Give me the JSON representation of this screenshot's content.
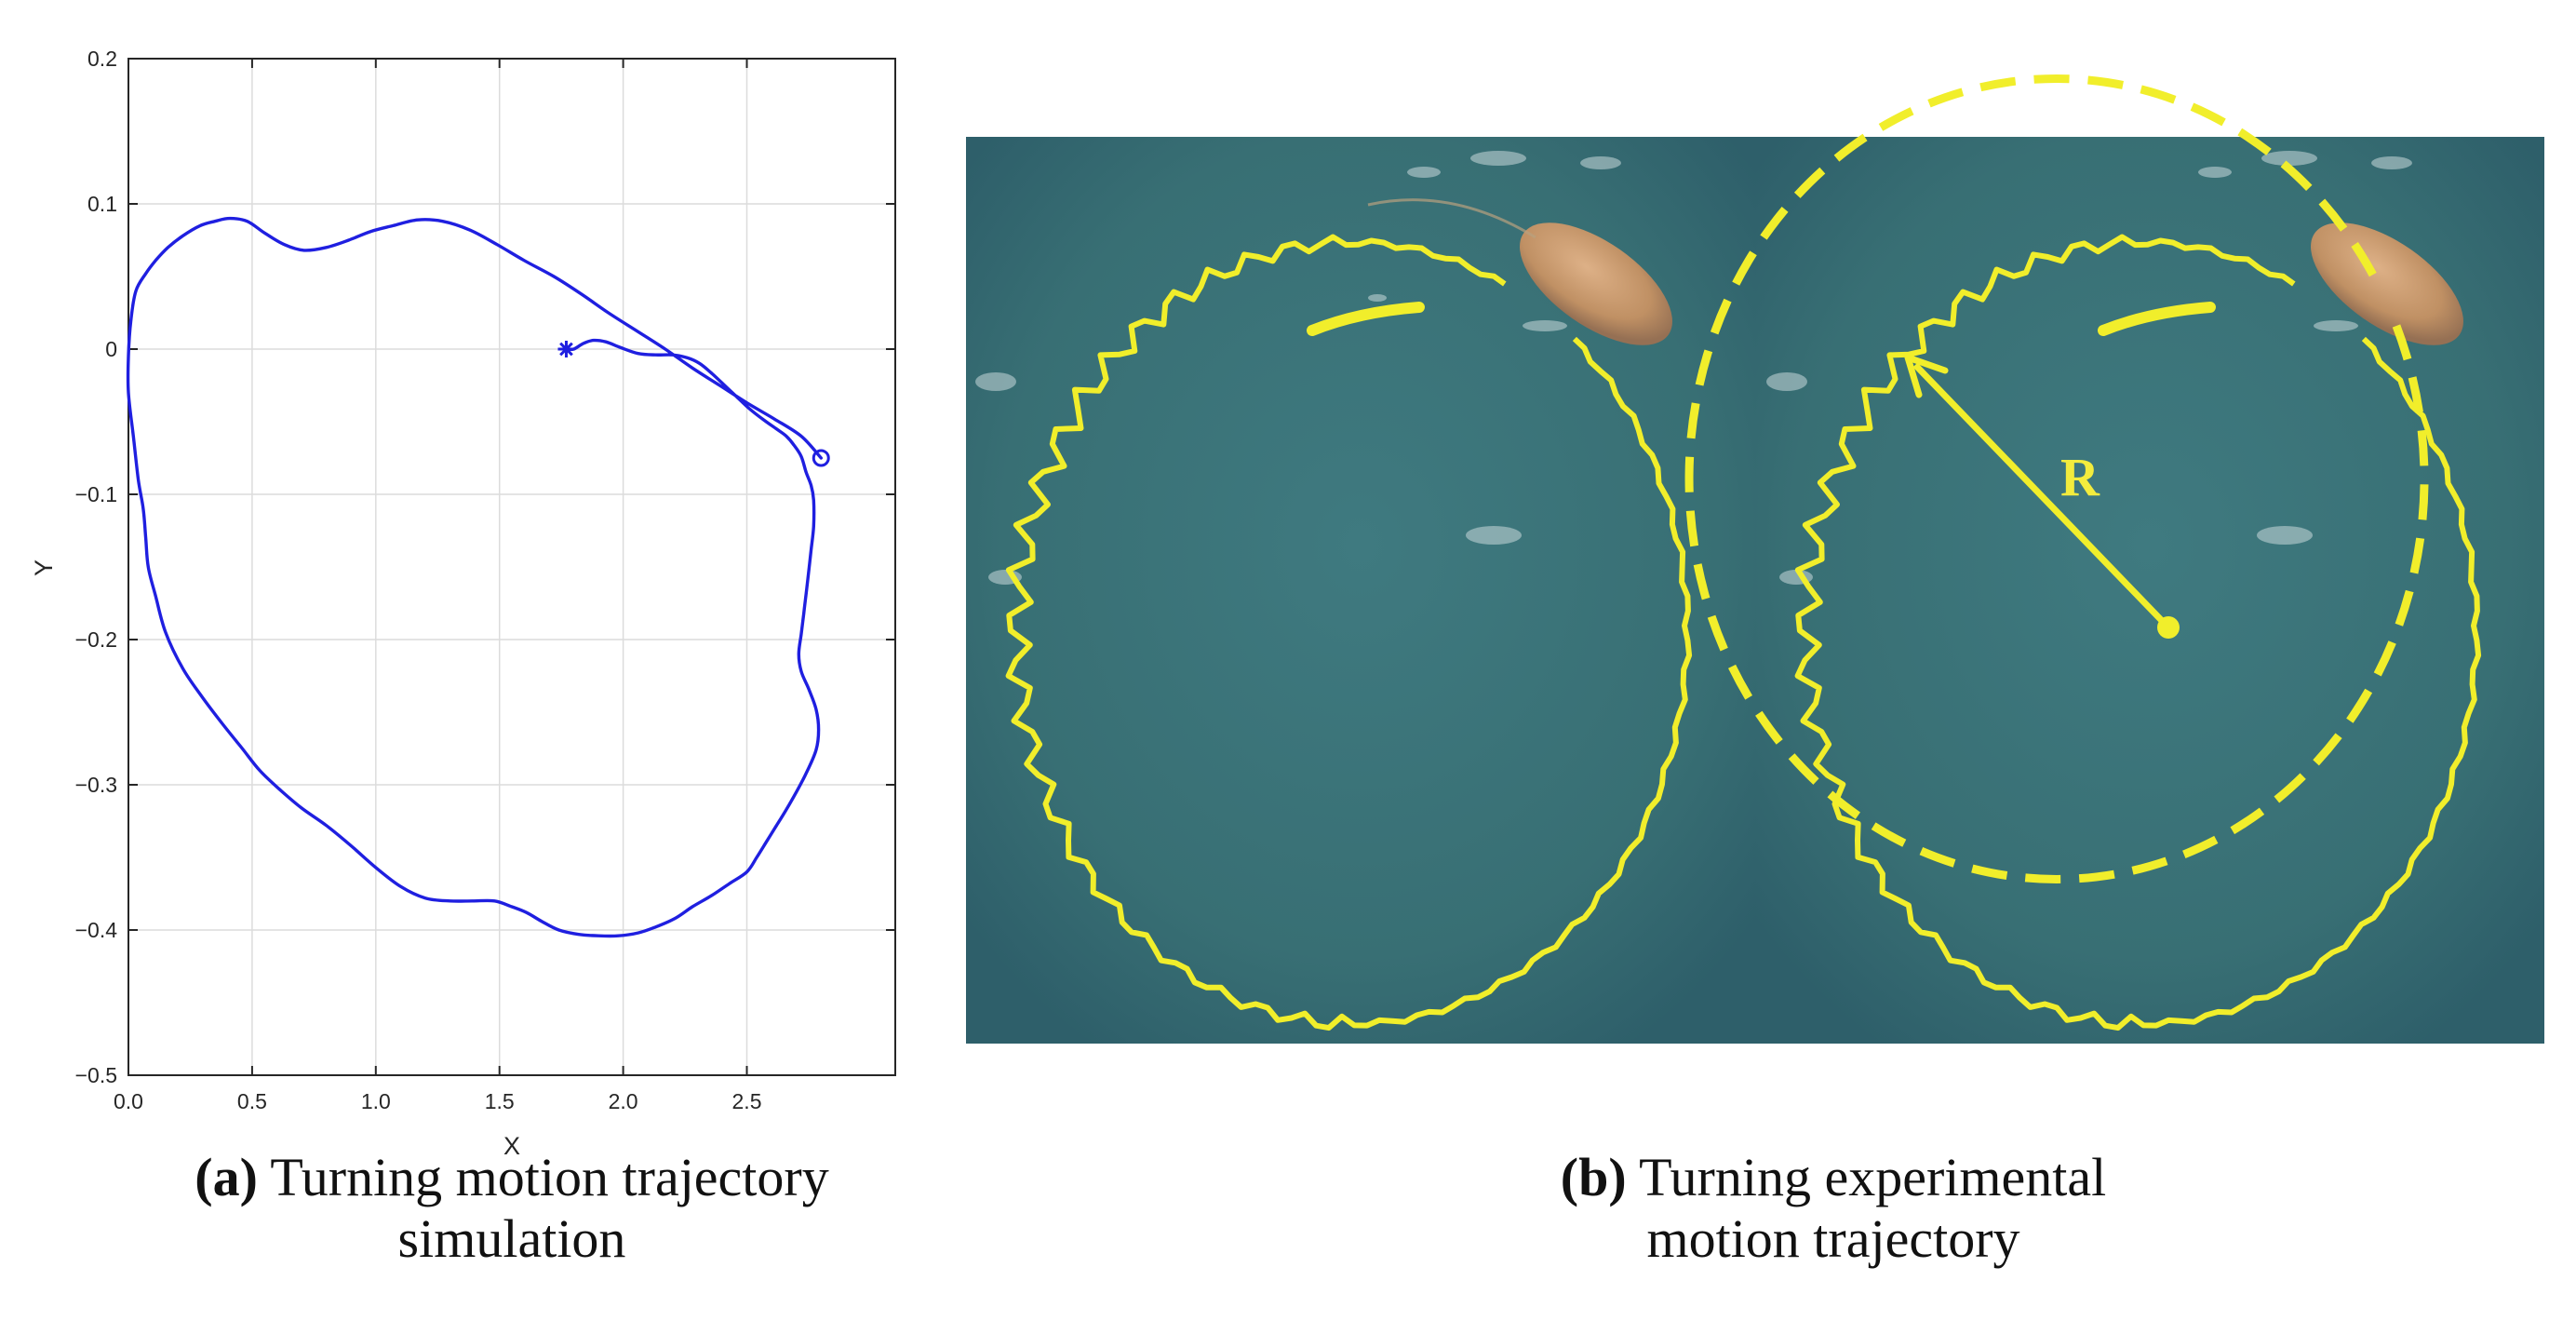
{
  "chart_data": [
    {
      "type": "line",
      "panel_label": "(a)",
      "caption_line1": "Turning motion trajectory",
      "caption_line2": "simulation",
      "xlabel": "X",
      "ylabel": "Y",
      "xlim": [
        0,
        3.1
      ],
      "ylim": [
        -0.5,
        0.2
      ],
      "xticks": [
        "0.0",
        "0.5",
        "1.0",
        "1.5",
        "2.0",
        "2.5"
      ],
      "yticks": [
        "0.2",
        "0.1",
        "0",
        "−0.1",
        "−0.2",
        "−0.3",
        "−0.4",
        "−0.5"
      ],
      "grid": true,
      "line_color": "#1f1fe0",
      "series": [
        {
          "x": [
            1.77,
            1.8,
            1.84,
            1.88,
            1.93,
            1.99,
            2.06,
            2.13,
            2.2,
            2.26,
            2.31,
            2.36,
            2.41,
            2.46,
            2.51,
            2.57,
            2.62,
            2.66,
            2.69,
            2.72,
            2.74,
            2.76,
            2.77,
            2.77,
            2.76,
            2.75,
            2.74,
            2.73,
            2.72,
            2.71,
            2.72,
            2.75,
            2.78,
            2.79,
            2.78,
            2.74,
            2.7,
            2.66,
            2.62,
            2.58,
            2.54,
            2.5,
            2.43,
            2.36,
            2.28,
            2.21,
            2.13,
            2.06,
            1.98,
            1.9,
            1.82,
            1.74,
            1.67,
            1.61,
            1.55,
            1.48,
            1.39,
            1.3,
            1.2,
            1.1,
            1.0,
            0.9,
            0.8,
            0.7,
            0.61,
            0.53,
            0.46,
            0.38,
            0.3,
            0.22,
            0.15,
            0.11,
            0.08,
            0.07,
            0.06,
            0.04,
            0.02,
            0.0,
            0.0,
            0.01,
            0.03,
            0.07,
            0.11,
            0.16,
            0.22,
            0.29,
            0.35,
            0.41,
            0.48,
            0.55,
            0.63,
            0.71,
            0.8,
            0.89,
            0.98,
            1.07,
            1.17,
            1.27,
            1.38,
            1.49,
            1.6,
            1.72,
            1.83,
            1.94,
            2.06,
            2.17,
            2.28,
            2.39,
            2.5,
            2.61,
            2.72,
            2.8
          ],
          "y": [
            0.0,
            0.0,
            0.004,
            0.006,
            0.005,
            0.001,
            -0.003,
            -0.004,
            -0.004,
            -0.006,
            -0.01,
            -0.017,
            -0.025,
            -0.033,
            -0.041,
            -0.049,
            -0.055,
            -0.06,
            -0.066,
            -0.074,
            -0.085,
            -0.094,
            -0.104,
            -0.122,
            -0.138,
            -0.153,
            -0.168,
            -0.182,
            -0.196,
            -0.21,
            -0.222,
            -0.234,
            -0.248,
            -0.262,
            -0.276,
            -0.292,
            -0.305,
            -0.317,
            -0.328,
            -0.339,
            -0.35,
            -0.36,
            -0.368,
            -0.376,
            -0.384,
            -0.392,
            -0.398,
            -0.402,
            -0.404,
            -0.404,
            -0.403,
            -0.4,
            -0.394,
            -0.388,
            -0.384,
            -0.38,
            -0.38,
            -0.38,
            -0.378,
            -0.37,
            -0.357,
            -0.342,
            -0.328,
            -0.316,
            -0.303,
            -0.29,
            -0.275,
            -0.258,
            -0.24,
            -0.22,
            -0.195,
            -0.17,
            -0.15,
            -0.13,
            -0.11,
            -0.09,
            -0.06,
            -0.03,
            -0.005,
            0.02,
            0.04,
            0.052,
            0.061,
            0.07,
            0.078,
            0.085,
            0.088,
            0.09,
            0.088,
            0.08,
            0.072,
            0.068,
            0.07,
            0.075,
            0.081,
            0.085,
            0.089,
            0.088,
            0.082,
            0.072,
            0.061,
            0.05,
            0.038,
            0.025,
            0.012,
            0.0,
            -0.013,
            -0.025,
            -0.037,
            -0.048,
            -0.06,
            -0.075
          ]
        }
      ],
      "start_marker": "asterisk",
      "end_marker": "circle"
    },
    {
      "type": "image",
      "panel_label": "(b)",
      "caption_line1": "Turning experimental",
      "caption_line2": "motion trajectory",
      "annotation": "R",
      "trajectory_color": "#f1ee2b",
      "water_color": "#3c7379"
    }
  ]
}
